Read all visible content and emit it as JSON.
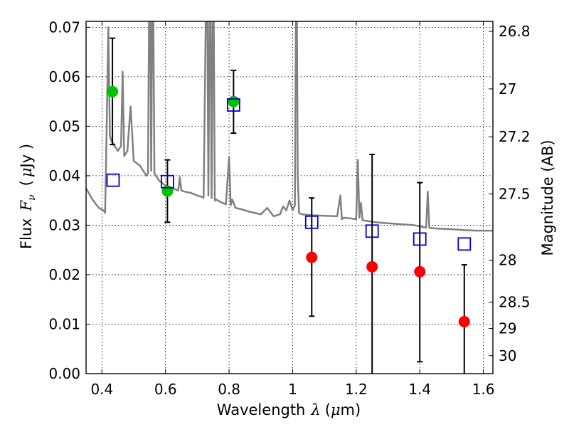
{
  "chart_data": {
    "type": "scatter",
    "title": "",
    "xlabel": {
      "text": "Wavelength",
      "symbol": "λ",
      "unit_open": "(",
      "unit_mu": "μ",
      "unit_rest": "m)"
    },
    "ylabel": {
      "text": "Flux",
      "symbol": "F",
      "subscript": "ν",
      "unit_open": "(",
      "unit_mu": "μ",
      "unit_rest": "Jy )"
    },
    "y2label": "Magnitude (AB)",
    "xlim": [
      0.35,
      1.63
    ],
    "ylim": [
      0.0,
      0.0712
    ],
    "grid": true,
    "x_ticks": [
      {
        "value": 0.4,
        "label": "0.4"
      },
      {
        "value": 0.6,
        "label": "0.6"
      },
      {
        "value": 0.8,
        "label": "0.8"
      },
      {
        "value": 1.0,
        "label": "1"
      },
      {
        "value": 1.2,
        "label": "1.2"
      },
      {
        "value": 1.4,
        "label": "1.4"
      },
      {
        "value": 1.6,
        "label": "1.6"
      }
    ],
    "y_ticks": [
      {
        "value": 0.0,
        "label": "0.00"
      },
      {
        "value": 0.01,
        "label": "0.01"
      },
      {
        "value": 0.02,
        "label": "0.02"
      },
      {
        "value": 0.03,
        "label": "0.03"
      },
      {
        "value": 0.04,
        "label": "0.04"
      },
      {
        "value": 0.05,
        "label": "0.05"
      },
      {
        "value": 0.06,
        "label": "0.06"
      },
      {
        "value": 0.07,
        "label": "0.07"
      }
    ],
    "y2_ticks": [
      {
        "value": 26.8,
        "label": "26.8"
      },
      {
        "value": 27.0,
        "label": "27"
      },
      {
        "value": 27.2,
        "label": "27.2"
      },
      {
        "value": 27.5,
        "label": "27.5"
      },
      {
        "value": 28.0,
        "label": "28"
      },
      {
        "value": 28.5,
        "label": "28.5"
      },
      {
        "value": 29.0,
        "label": "29"
      },
      {
        "value": 30.0,
        "label": "30"
      }
    ],
    "series": [
      {
        "marker": "circle",
        "color": "#00c000",
        "points": [
          {
            "x": 0.433,
            "y": 0.057,
            "ylo": 0.0463,
            "yhi": 0.0678
          },
          {
            "x": 0.606,
            "y": 0.0369,
            "ylo": 0.0306,
            "yhi": 0.0432
          },
          {
            "x": 0.814,
            "y": 0.055,
            "ylo": 0.0486,
            "yhi": 0.0613
          }
        ]
      },
      {
        "marker": "circle",
        "color": "#ff0000",
        "points": [
          {
            "x": 1.06,
            "y": 0.0235,
            "ylo": 0.0116,
            "yhi": 0.0355
          },
          {
            "x": 1.25,
            "y": 0.0216,
            "ylo": 0.0,
            "yhi": 0.0443
          },
          {
            "x": 1.4,
            "y": 0.0206,
            "ylo": 0.0024,
            "yhi": 0.0386
          },
          {
            "x": 1.54,
            "y": 0.0105,
            "ylo": 0.0,
            "yhi": 0.022
          }
        ]
      },
      {
        "marker": "open-square",
        "color": "#0000cc",
        "points": [
          {
            "x": 0.435,
            "y": 0.0391
          },
          {
            "x": 0.606,
            "y": 0.0388
          },
          {
            "x": 0.814,
            "y": 0.0543
          },
          {
            "x": 1.06,
            "y": 0.0306
          },
          {
            "x": 1.25,
            "y": 0.0288
          },
          {
            "x": 1.4,
            "y": 0.0272
          },
          {
            "x": 1.54,
            "y": 0.0262
          }
        ]
      }
    ],
    "model_spectrum": {
      "color": "#808080",
      "x": [
        0.35,
        0.37,
        0.39,
        0.405,
        0.41,
        0.415,
        0.42,
        0.425,
        0.43,
        0.44,
        0.45,
        0.46,
        0.465,
        0.47,
        0.48,
        0.49,
        0.5,
        0.51,
        0.52,
        0.53,
        0.54,
        0.545,
        0.55,
        0.555,
        0.56,
        0.565,
        0.58,
        0.6,
        0.62,
        0.64,
        0.645,
        0.65,
        0.66,
        0.68,
        0.7,
        0.72,
        0.73,
        0.735,
        0.74,
        0.745,
        0.75,
        0.755,
        0.76,
        0.77,
        0.78,
        0.79,
        0.8,
        0.805,
        0.81,
        0.82,
        0.84,
        0.86,
        0.88,
        0.9,
        0.92,
        0.94,
        0.96,
        0.97,
        0.98,
        0.99,
        1.0,
        1.007,
        1.012,
        1.016,
        1.02,
        1.025,
        1.03,
        1.06,
        1.1,
        1.14,
        1.15,
        1.155,
        1.16,
        1.18,
        1.2,
        1.205,
        1.21,
        1.215,
        1.22,
        1.24,
        1.26,
        1.3,
        1.34,
        1.38,
        1.4,
        1.41,
        1.42,
        1.425,
        1.43,
        1.44,
        1.46,
        1.5,
        1.54,
        1.58,
        1.6,
        1.63
      ],
      "y": [
        0.0375,
        0.0352,
        0.0335,
        0.033,
        0.0325,
        0.05,
        0.07,
        0.048,
        0.047,
        0.046,
        0.045,
        0.046,
        0.061,
        0.044,
        0.045,
        0.054,
        0.043,
        0.0425,
        0.042,
        0.041,
        0.04,
        0.0405,
        0.09,
        0.041,
        0.09,
        0.0405,
        0.039,
        0.038,
        0.0375,
        0.037,
        0.0397,
        0.037,
        0.0368,
        0.0365,
        0.036,
        0.0356,
        0.09,
        0.036,
        0.09,
        0.0355,
        0.09,
        0.035,
        0.0352,
        0.0348,
        0.0345,
        0.0342,
        0.0437,
        0.034,
        0.0352,
        0.0335,
        0.0332,
        0.0328,
        0.0325,
        0.0322,
        0.0335,
        0.0318,
        0.0322,
        0.0338,
        0.033,
        0.035,
        0.033,
        0.034,
        0.09,
        0.04,
        0.0325,
        0.0323,
        0.0322,
        0.032,
        0.0319,
        0.0318,
        0.036,
        0.0312,
        0.0315,
        0.0314,
        0.0312,
        0.0432,
        0.0315,
        0.0345,
        0.031,
        0.0308,
        0.0306,
        0.0304,
        0.0302,
        0.03,
        0.0298,
        0.0296,
        0.0295,
        0.0368,
        0.0295,
        0.0294,
        0.0293,
        0.0292,
        0.029,
        0.0289,
        0.0289,
        0.0289
      ]
    }
  }
}
